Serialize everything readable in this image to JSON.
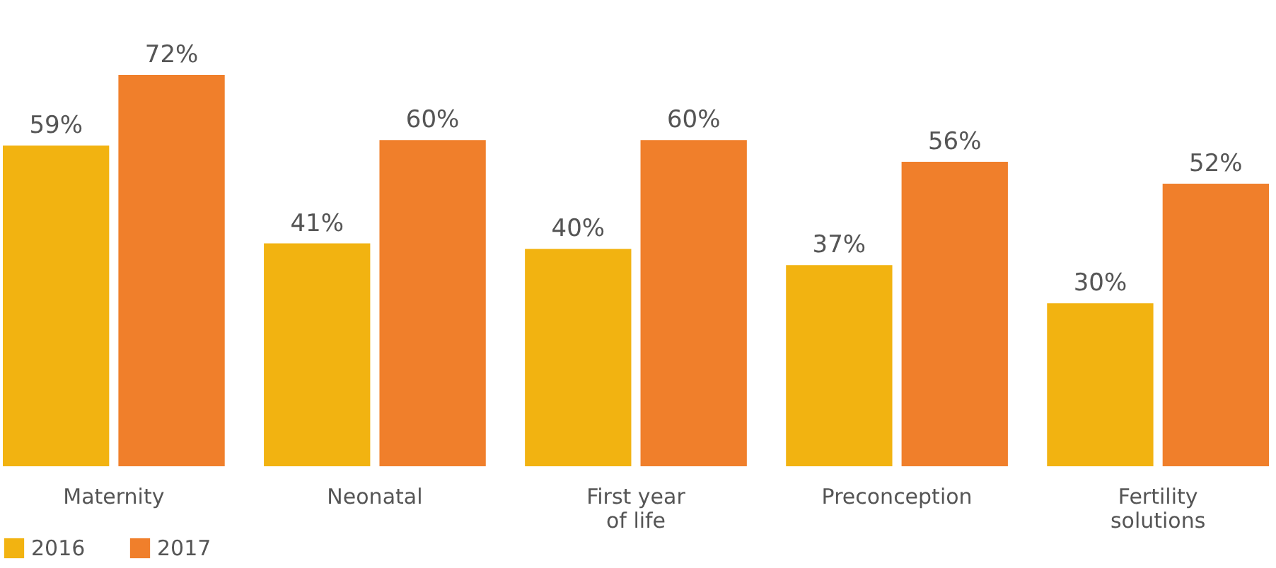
{
  "chart_data": {
    "type": "bar",
    "categories": [
      "Maternity",
      "Neonatal",
      "First year\nof life",
      "Preconception",
      "Fertility\nsolutions"
    ],
    "series": [
      {
        "name": "2016",
        "color": "#f2b311",
        "values": [
          59,
          41,
          40,
          37,
          30
        ],
        "value_labels": [
          "59%",
          "41%",
          "40%",
          "37%",
          "30%"
        ]
      },
      {
        "name": "2017",
        "color": "#f07f2b",
        "values": [
          72,
          60,
          60,
          56,
          52
        ],
        "value_labels": [
          "72%",
          "60%",
          "60%",
          "56%",
          "52%"
        ]
      }
    ],
    "legend": "bottom left",
    "grid": false
  }
}
